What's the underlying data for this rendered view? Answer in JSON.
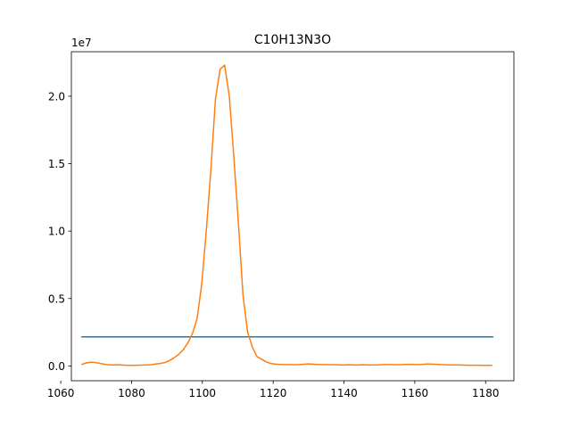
{
  "chart_data": {
    "type": "line",
    "title": "C10H13N3O",
    "xlabel": "",
    "ylabel": "",
    "y_offset_label": "1e7",
    "xlim": [
      1063,
      1188
    ],
    "ylim": [
      -0.11,
      2.33
    ],
    "x_ticks": [
      1060,
      1080,
      1100,
      1120,
      1140,
      1160,
      1180
    ],
    "x_tick_labels": [
      "1060",
      "1080",
      "1100",
      "1120",
      "1140",
      "1160",
      "1180"
    ],
    "y_ticks": [
      0.0,
      0.5,
      1.0,
      1.5,
      2.0
    ],
    "y_tick_labels": [
      "0.0",
      "0.5",
      "1.0",
      "1.5",
      "2.0"
    ],
    "grid": false,
    "series": [
      {
        "color": "#1f77b4",
        "x": [
          1066,
          1182
        ],
        "y": [
          0.216,
          0.216
        ]
      },
      {
        "color": "#ff7f0e",
        "x": [
          1066,
          1067.3,
          1068.6,
          1069.9,
          1071.2,
          1072.5,
          1073.8,
          1075.1,
          1076.4,
          1077.7,
          1079,
          1080.3,
          1081.6,
          1082.9,
          1084.2,
          1085.5,
          1086.8,
          1088.1,
          1089.4,
          1090.7,
          1092,
          1093.3,
          1094.6,
          1095.9,
          1097.2,
          1098.5,
          1099.8,
          1101.1,
          1102.4,
          1103.7,
          1105,
          1106.3,
          1107.6,
          1108.9,
          1110.2,
          1111.5,
          1112.8,
          1114.1,
          1115.4,
          1116.7,
          1118,
          1119.3,
          1120.6,
          1121.9,
          1123.2,
          1124.5,
          1125.8,
          1127.1,
          1128.4,
          1129.7,
          1131,
          1132.3,
          1133.6,
          1134.9,
          1136.2,
          1137.5,
          1138.8,
          1140.1,
          1141.4,
          1142.7,
          1144,
          1145.3,
          1146.6,
          1147.9,
          1149.2,
          1150.5,
          1151.8,
          1153.1,
          1154.4,
          1155.7,
          1157,
          1158.3,
          1159.6,
          1160.9,
          1162.2,
          1163.5,
          1164.8,
          1166.1,
          1167.4,
          1168.7,
          1170,
          1171.3,
          1172.6,
          1173.9,
          1175.2,
          1176.5,
          1177.8,
          1179.1,
          1180.4,
          1181.7
        ],
        "y": [
          0.012,
          0.022,
          0.028,
          0.025,
          0.018,
          0.012,
          0.008,
          0.008,
          0.009,
          0.006,
          0.004,
          0.004,
          0.005,
          0.006,
          0.007,
          0.009,
          0.014,
          0.018,
          0.025,
          0.04,
          0.06,
          0.085,
          0.12,
          0.17,
          0.24,
          0.35,
          0.6,
          1.0,
          1.45,
          1.98,
          2.2,
          2.23,
          2.0,
          1.55,
          1.05,
          0.52,
          0.25,
          0.14,
          0.07,
          0.05,
          0.03,
          0.018,
          0.013,
          0.011,
          0.01,
          0.01,
          0.009,
          0.01,
          0.012,
          0.015,
          0.013,
          0.011,
          0.01,
          0.01,
          0.009,
          0.009,
          0.008,
          0.008,
          0.009,
          0.008,
          0.008,
          0.009,
          0.008,
          0.008,
          0.008,
          0.009,
          0.01,
          0.01,
          0.009,
          0.009,
          0.011,
          0.012,
          0.011,
          0.01,
          0.012,
          0.014,
          0.013,
          0.012,
          0.01,
          0.009,
          0.008,
          0.007,
          0.007,
          0.006,
          0.005,
          0.005,
          0.005,
          0.004,
          0.004,
          0.004
        ]
      }
    ]
  }
}
